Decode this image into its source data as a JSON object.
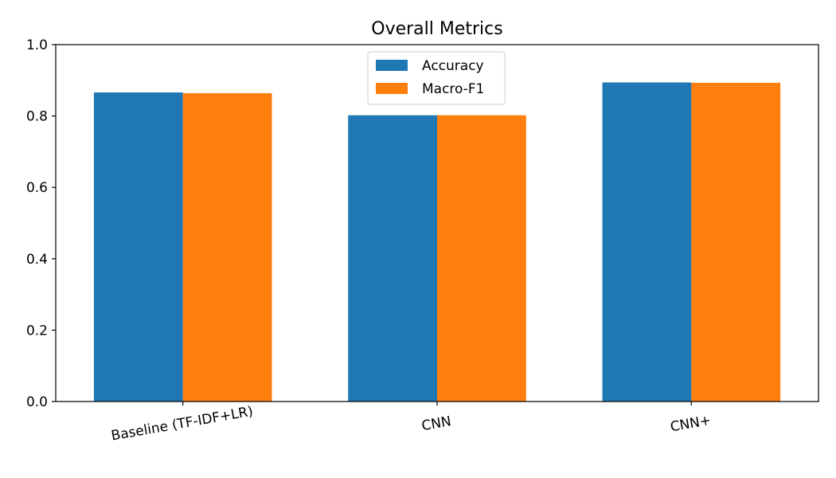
{
  "chart_data": {
    "type": "bar",
    "title": "Overall Metrics",
    "xlabel": "",
    "ylabel": "",
    "categories": [
      "Baseline (TF-IDF+LR)",
      "CNN",
      "CNN+"
    ],
    "series": [
      {
        "name": "Accuracy",
        "values": [
          0.866,
          0.802,
          0.894
        ],
        "color": "#1f77b4"
      },
      {
        "name": "Macro-F1",
        "values": [
          0.864,
          0.802,
          0.893
        ],
        "color": "#ff7f0e"
      }
    ],
    "ylim": [
      0,
      1.0
    ],
    "yticks": [
      "0.0",
      "0.2",
      "0.4",
      "0.6",
      "0.8",
      "1.0"
    ],
    "ytick_values": [
      0,
      0.2,
      0.4,
      0.6,
      0.8,
      1.0
    ],
    "grid": false,
    "legend_position": "upper-center"
  }
}
